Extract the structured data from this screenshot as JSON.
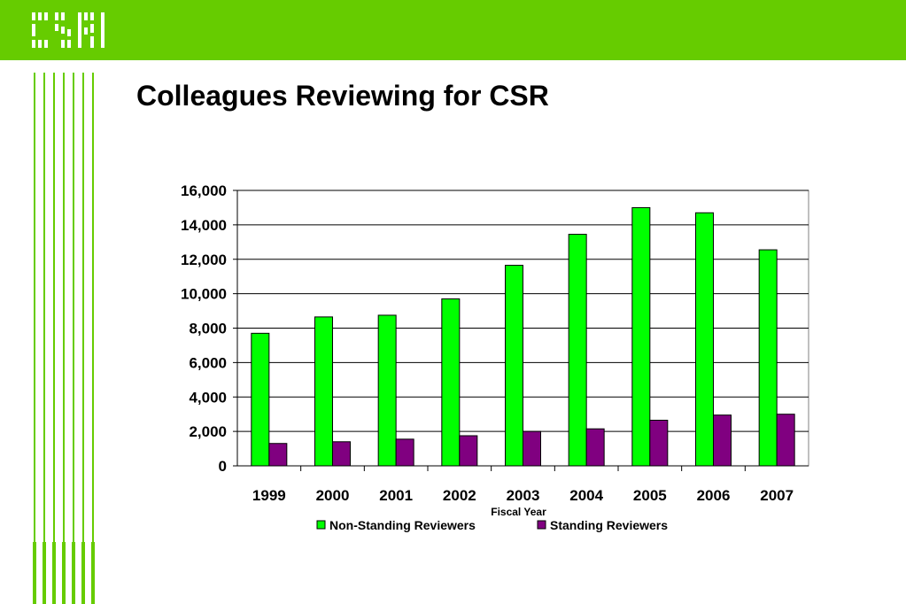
{
  "slide": {
    "title": "Colleagues Reviewing for CSR",
    "logo_text": "CSR"
  },
  "colors": {
    "brand_green": "#66cc00",
    "non_standing": "#00ff00",
    "standing": "#800080"
  },
  "chart_data": {
    "type": "bar",
    "title": "",
    "xlabel": "Fiscal Year",
    "ylabel": "",
    "categories": [
      "1999",
      "2000",
      "2001",
      "2002",
      "2003",
      "2004",
      "2005",
      "2006",
      "2007"
    ],
    "series": [
      {
        "name": "Non-Standing Reviewers",
        "color": "#00ff00",
        "values": [
          7700,
          8650,
          8750,
          9700,
          11650,
          13450,
          15000,
          14700,
          12550
        ]
      },
      {
        "name": "Standing Reviewers",
        "color": "#800080",
        "values": [
          1300,
          1400,
          1550,
          1750,
          2000,
          2150,
          2650,
          2950,
          3000
        ]
      }
    ],
    "ylim": [
      0,
      16000
    ],
    "yticks": [
      "0",
      "2,000",
      "4,000",
      "6,000",
      "8,000",
      "10,000",
      "12,000",
      "14,000",
      "16,000"
    ],
    "grid": true,
    "legend_position": "bottom"
  }
}
